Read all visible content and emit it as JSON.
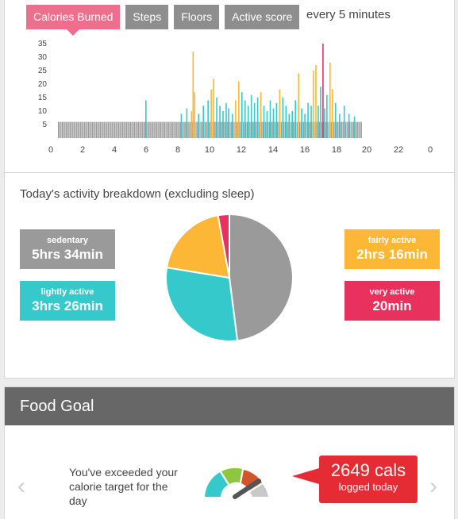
{
  "tabs": [
    {
      "label": "Calories Burned",
      "active": true
    },
    {
      "label": "Steps",
      "active": false
    },
    {
      "label": "Floors",
      "active": false
    },
    {
      "label": "Active score",
      "active": false
    }
  ],
  "interval_label": "every 5 minutes",
  "chart_data": {
    "type": "bar",
    "y_ticks": [
      "35",
      "30",
      "25",
      "20",
      "15",
      "10",
      "5"
    ],
    "x_ticks": [
      "0",
      "2",
      "4",
      "6",
      "8",
      "10",
      "12",
      "14",
      "16",
      "18",
      "20",
      "22",
      "0"
    ],
    "ylim": [
      0,
      35
    ],
    "xlim": [
      0,
      24
    ],
    "interval_minutes": 5,
    "baseline_value": 6,
    "baseline_range_hours": [
      0.2,
      19.5
    ],
    "colors": {
      "sedentary": "#9a9a9a",
      "lightly": "#36c9cc",
      "fairly": "#fbb735",
      "very": "#e8325d"
    },
    "active_bars": [
      {
        "x": 5.75,
        "y": 14,
        "level": "lightly"
      },
      {
        "x": 8.0,
        "y": 9,
        "level": "lightly"
      },
      {
        "x": 8.35,
        "y": 11,
        "level": "lightly"
      },
      {
        "x": 8.65,
        "y": 10,
        "level": "fairly"
      },
      {
        "x": 8.75,
        "y": 32,
        "level": "fairly"
      },
      {
        "x": 8.85,
        "y": 17,
        "level": "fairly"
      },
      {
        "x": 9.1,
        "y": 9,
        "level": "lightly"
      },
      {
        "x": 9.4,
        "y": 12,
        "level": "lightly"
      },
      {
        "x": 9.7,
        "y": 14,
        "level": "lightly"
      },
      {
        "x": 9.9,
        "y": 18,
        "level": "fairly"
      },
      {
        "x": 10.05,
        "y": 22,
        "level": "fairly"
      },
      {
        "x": 10.25,
        "y": 15,
        "level": "lightly"
      },
      {
        "x": 10.45,
        "y": 12,
        "level": "lightly"
      },
      {
        "x": 10.65,
        "y": 10,
        "level": "lightly"
      },
      {
        "x": 10.85,
        "y": 13,
        "level": "lightly"
      },
      {
        "x": 11.0,
        "y": 11,
        "level": "lightly"
      },
      {
        "x": 11.25,
        "y": 9,
        "level": "lightly"
      },
      {
        "x": 11.45,
        "y": 14,
        "level": "fairly"
      },
      {
        "x": 11.65,
        "y": 21,
        "level": "fairly"
      },
      {
        "x": 11.85,
        "y": 17,
        "level": "lightly"
      },
      {
        "x": 12.05,
        "y": 14,
        "level": "lightly"
      },
      {
        "x": 12.25,
        "y": 12,
        "level": "lightly"
      },
      {
        "x": 12.45,
        "y": 16,
        "level": "lightly"
      },
      {
        "x": 12.65,
        "y": 13,
        "level": "lightly"
      },
      {
        "x": 12.85,
        "y": 15,
        "level": "lightly"
      },
      {
        "x": 13.05,
        "y": 17,
        "level": "fairly"
      },
      {
        "x": 13.25,
        "y": 12,
        "level": "lightly"
      },
      {
        "x": 13.45,
        "y": 10,
        "level": "lightly"
      },
      {
        "x": 13.65,
        "y": 14,
        "level": "lightly"
      },
      {
        "x": 13.85,
        "y": 11,
        "level": "lightly"
      },
      {
        "x": 14.05,
        "y": 13,
        "level": "lightly"
      },
      {
        "x": 14.25,
        "y": 18,
        "level": "fairly"
      },
      {
        "x": 14.45,
        "y": 15,
        "level": "lightly"
      },
      {
        "x": 14.65,
        "y": 12,
        "level": "lightly"
      },
      {
        "x": 14.85,
        "y": 9,
        "level": "lightly"
      },
      {
        "x": 15.05,
        "y": 10,
        "level": "lightly"
      },
      {
        "x": 15.25,
        "y": 14,
        "level": "lightly"
      },
      {
        "x": 15.45,
        "y": 24,
        "level": "fairly"
      },
      {
        "x": 15.65,
        "y": 11,
        "level": "lightly"
      },
      {
        "x": 15.85,
        "y": 9,
        "level": "lightly"
      },
      {
        "x": 16.05,
        "y": 13,
        "level": "lightly"
      },
      {
        "x": 16.25,
        "y": 12,
        "level": "lightly"
      },
      {
        "x": 16.4,
        "y": 25,
        "level": "fairly"
      },
      {
        "x": 16.55,
        "y": 27,
        "level": "fairly"
      },
      {
        "x": 16.7,
        "y": 12,
        "level": "lightly"
      },
      {
        "x": 16.85,
        "y": 19,
        "level": "lightly"
      },
      {
        "x": 17.0,
        "y": 35,
        "level": "very"
      },
      {
        "x": 17.1,
        "y": 11,
        "level": "lightly"
      },
      {
        "x": 17.25,
        "y": 16,
        "level": "lightly"
      },
      {
        "x": 17.45,
        "y": 28,
        "level": "fairly"
      },
      {
        "x": 17.6,
        "y": 18,
        "level": "fairly"
      },
      {
        "x": 17.8,
        "y": 13,
        "level": "lightly"
      },
      {
        "x": 18.05,
        "y": 9,
        "level": "lightly"
      },
      {
        "x": 18.35,
        "y": 12,
        "level": "lightly"
      },
      {
        "x": 18.65,
        "y": 9,
        "level": "lightly"
      },
      {
        "x": 19.0,
        "y": 8,
        "level": "lightly"
      }
    ]
  },
  "breakdown": {
    "title": "Today's activity breakdown (excluding sleep)",
    "stats": [
      {
        "key": "sedentary",
        "label": "sedentary",
        "value": "5hrs 34min",
        "color": "#9a9a9a"
      },
      {
        "key": "lightly",
        "label": "lightly active",
        "value": "3hrs 26min",
        "color": "#36c9cc"
      },
      {
        "key": "fairly",
        "label": "fairly active",
        "value": "2hrs 16min",
        "color": "#fbb735"
      },
      {
        "key": "very",
        "label": "very active",
        "value": "20min",
        "color": "#e8325d"
      }
    ],
    "pie_minutes": [
      {
        "key": "sedentary",
        "minutes": 334,
        "color": "#9a9a9a"
      },
      {
        "key": "lightly",
        "minutes": 206,
        "color": "#36c9cc"
      },
      {
        "key": "fairly",
        "minutes": 136,
        "color": "#fbb735"
      },
      {
        "key": "very",
        "minutes": 20,
        "color": "#e8325d"
      }
    ]
  },
  "food": {
    "title": "Food Goal",
    "message": "You've exceeded your calorie target for the day",
    "calories_value": "2649 cals",
    "calories_sub": "logged today",
    "gauge_colors": [
      "#36c9cc",
      "#8ec63f",
      "#d2542b",
      "#c8c8c8"
    ],
    "prev_arrow": "‹",
    "next_arrow": "›"
  }
}
